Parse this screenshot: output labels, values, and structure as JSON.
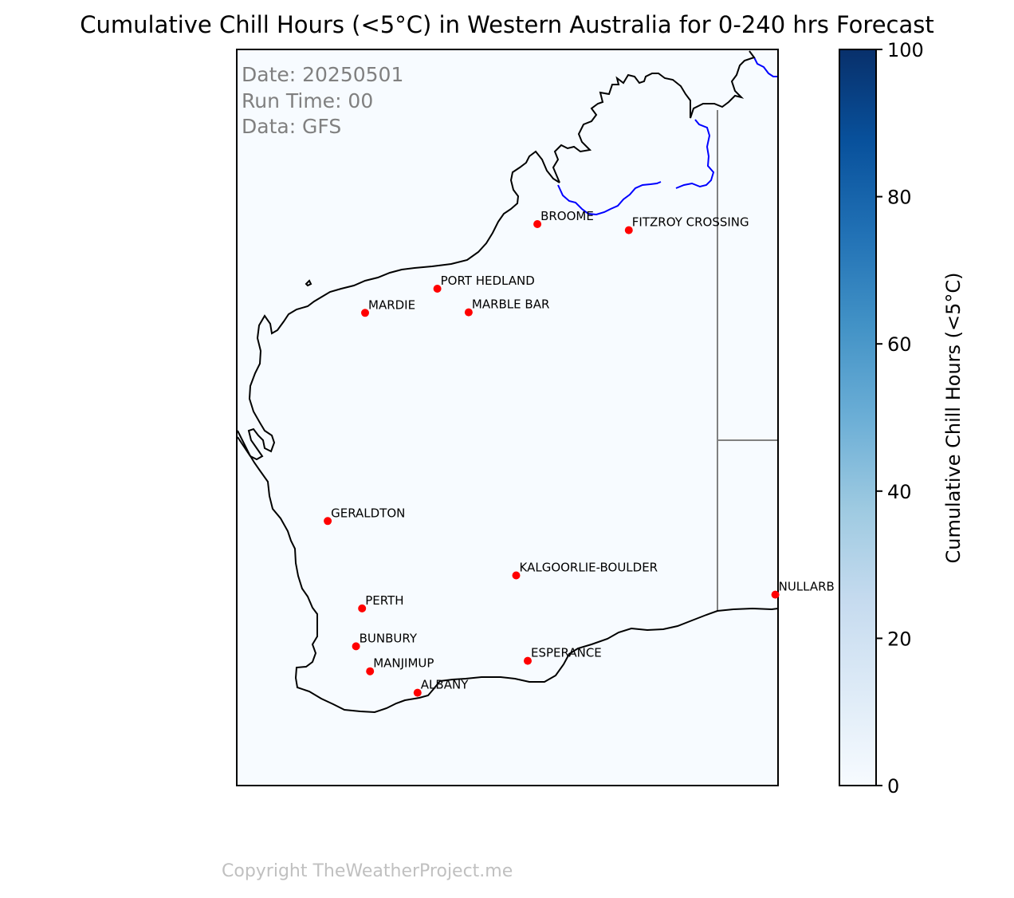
{
  "title": "Cumulative Chill Hours (<5°C) in Western Australia for 0-240 hrs Forecast",
  "info": {
    "date": "Date: 20250501",
    "run_time": "Run Time: 00",
    "data_source": "Data: GFS"
  },
  "cities": [
    {
      "id": "broome",
      "label": "BROOME",
      "lon": 122.24,
      "lat": -17.96
    },
    {
      "id": "fitzroy-crossing",
      "label": "FITZROY CROSSING",
      "lon": 125.57,
      "lat": -18.18
    },
    {
      "id": "port-hedland",
      "label": "PORT HEDLAND",
      "lon": 118.6,
      "lat": -20.31
    },
    {
      "id": "marble-bar",
      "label": "MARBLE BAR",
      "lon": 119.74,
      "lat": -21.17
    },
    {
      "id": "mardie",
      "label": "MARDIE",
      "lon": 115.97,
      "lat": -21.19
    },
    {
      "id": "geraldton",
      "label": "GERALDTON",
      "lon": 114.61,
      "lat": -28.77
    },
    {
      "id": "kalgoorlie-boulder",
      "label": "KALGOORLIE-BOULDER",
      "lon": 121.47,
      "lat": -30.75
    },
    {
      "id": "nullarbor",
      "label": "NULLARB",
      "lon": 130.9,
      "lat": -31.45
    },
    {
      "id": "perth",
      "label": "PERTH",
      "lon": 115.86,
      "lat": -31.95
    },
    {
      "id": "bunbury",
      "label": "BUNBURY",
      "lon": 115.64,
      "lat": -33.33
    },
    {
      "id": "esperance",
      "label": "ESPERANCE",
      "lon": 121.89,
      "lat": -33.86
    },
    {
      "id": "manjimup",
      "label": "MANJIMUP",
      "lon": 116.15,
      "lat": -34.24
    },
    {
      "id": "albany",
      "label": "ALBANY",
      "lon": 117.88,
      "lat": -35.02
    }
  ],
  "colorbar": {
    "label": "Cumulative Chill Hours (<5°C)",
    "min": 0,
    "max": 100,
    "ticks": [
      0,
      20,
      40,
      60,
      80,
      100
    ],
    "colors": [
      "#f7fbff",
      "#deebf7",
      "#c6dbef",
      "#9ecae1",
      "#6baed6",
      "#4292c6",
      "#2171b5",
      "#08519c",
      "#08306b"
    ]
  },
  "copyright": "Copyright TheWeatherProject.me"
}
